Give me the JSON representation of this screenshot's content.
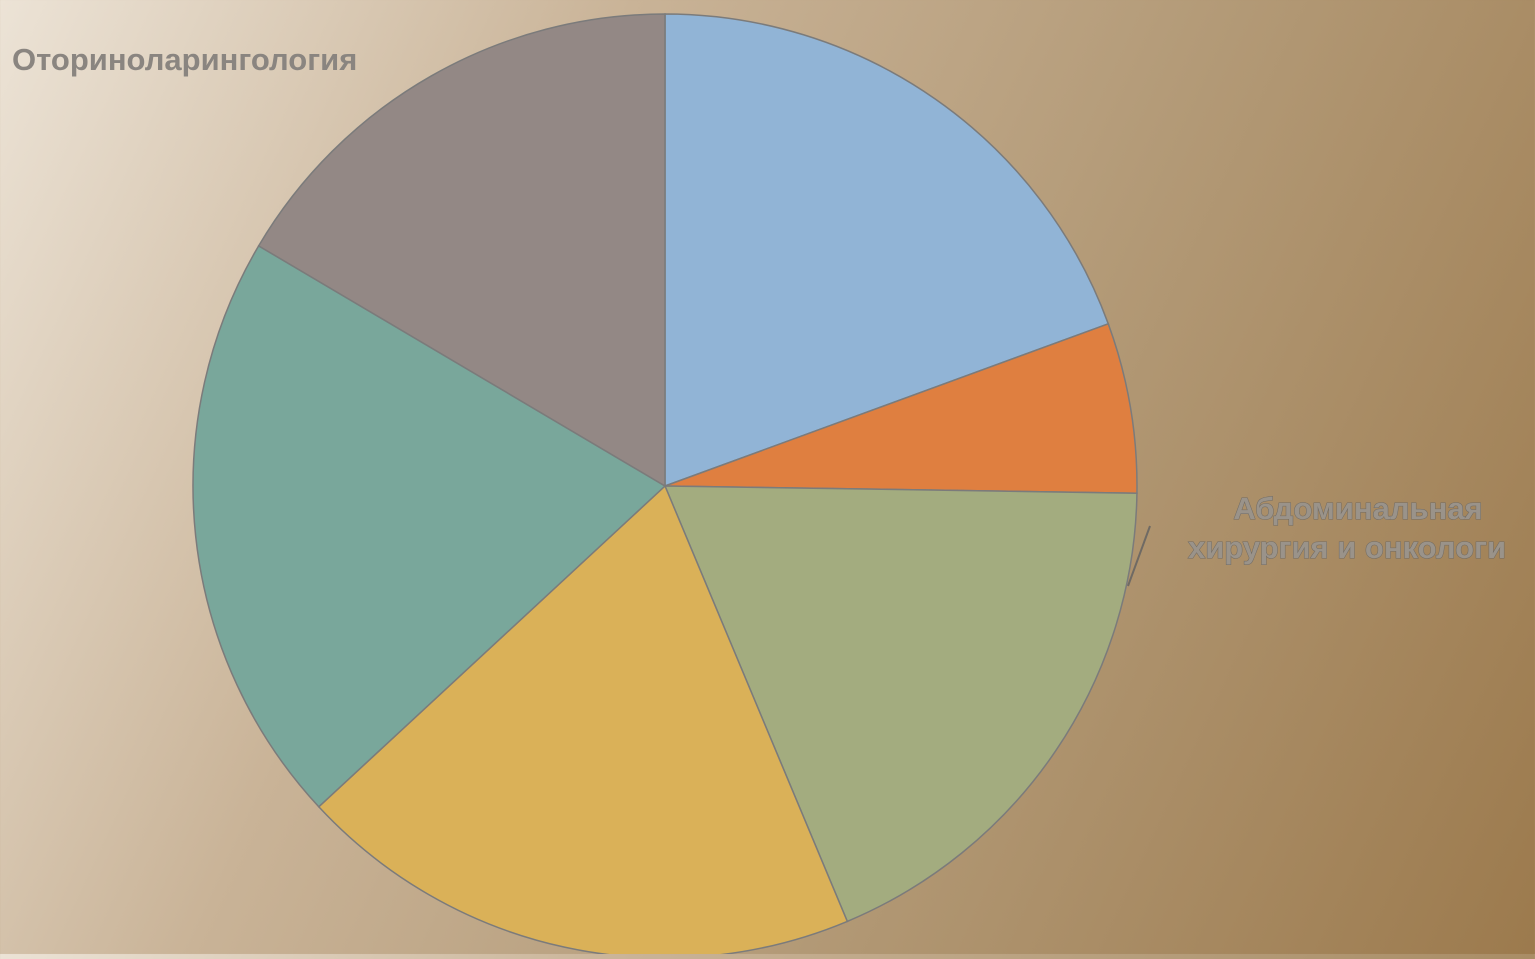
{
  "chart_data": {
    "type": "pie",
    "title": "",
    "start_angle_deg": 0,
    "direction": "clockwise",
    "slices": [
      {
        "name": "",
        "value": 20,
        "color": "#91b4d6"
      },
      {
        "name": "",
        "value": 6,
        "color": "#df7f40"
      },
      {
        "name": "Абдоминальная хирургия и онкологи",
        "value": 19,
        "color": "#a3ac7f"
      },
      {
        "name": "",
        "value": 20,
        "color": "#dab158"
      },
      {
        "name": "",
        "value": 21,
        "color": "#79a79b"
      },
      {
        "name": "Оториноларингология",
        "value": 17,
        "color": "#938885"
      }
    ],
    "labels": {
      "otorhino": "Оториноларингология",
      "abdominal_line1": "Абдоминальная",
      "abdominal_line2": "хирургия и онкологи"
    }
  }
}
